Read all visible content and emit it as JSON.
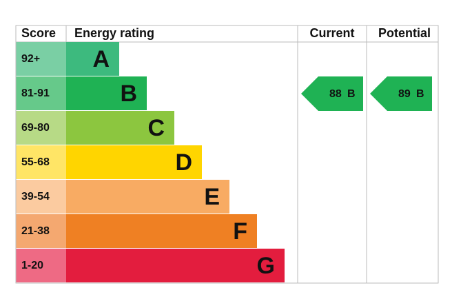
{
  "header": {
    "score": "Score",
    "rating": "Energy rating",
    "current": "Current",
    "potential": "Potential"
  },
  "bands": [
    {
      "score": "92+",
      "letter": "A",
      "color": "#3dba7e",
      "score_color": "#7acfa4"
    },
    {
      "score": "81-91",
      "letter": "B",
      "color": "#1fb254",
      "score_color": "#66c98a"
    },
    {
      "score": "69-80",
      "letter": "C",
      "color": "#8cc63f",
      "score_color": "#b7da86"
    },
    {
      "score": "55-68",
      "letter": "D",
      "color": "#ffd500",
      "score_color": "#ffe566"
    },
    {
      "score": "39-54",
      "letter": "E",
      "color": "#f8ab63",
      "score_color": "#fbcba0"
    },
    {
      "score": "21-38",
      "letter": "F",
      "color": "#ef8023",
      "score_color": "#f4a870"
    },
    {
      "score": "1-20",
      "letter": "G",
      "color": "#e31d3e",
      "score_color": "#ee6a84"
    }
  ],
  "current": {
    "score": "88",
    "letter": "B",
    "color": "#1fb254"
  },
  "potential": {
    "score": "89",
    "letter": "B",
    "color": "#1fb254"
  }
}
